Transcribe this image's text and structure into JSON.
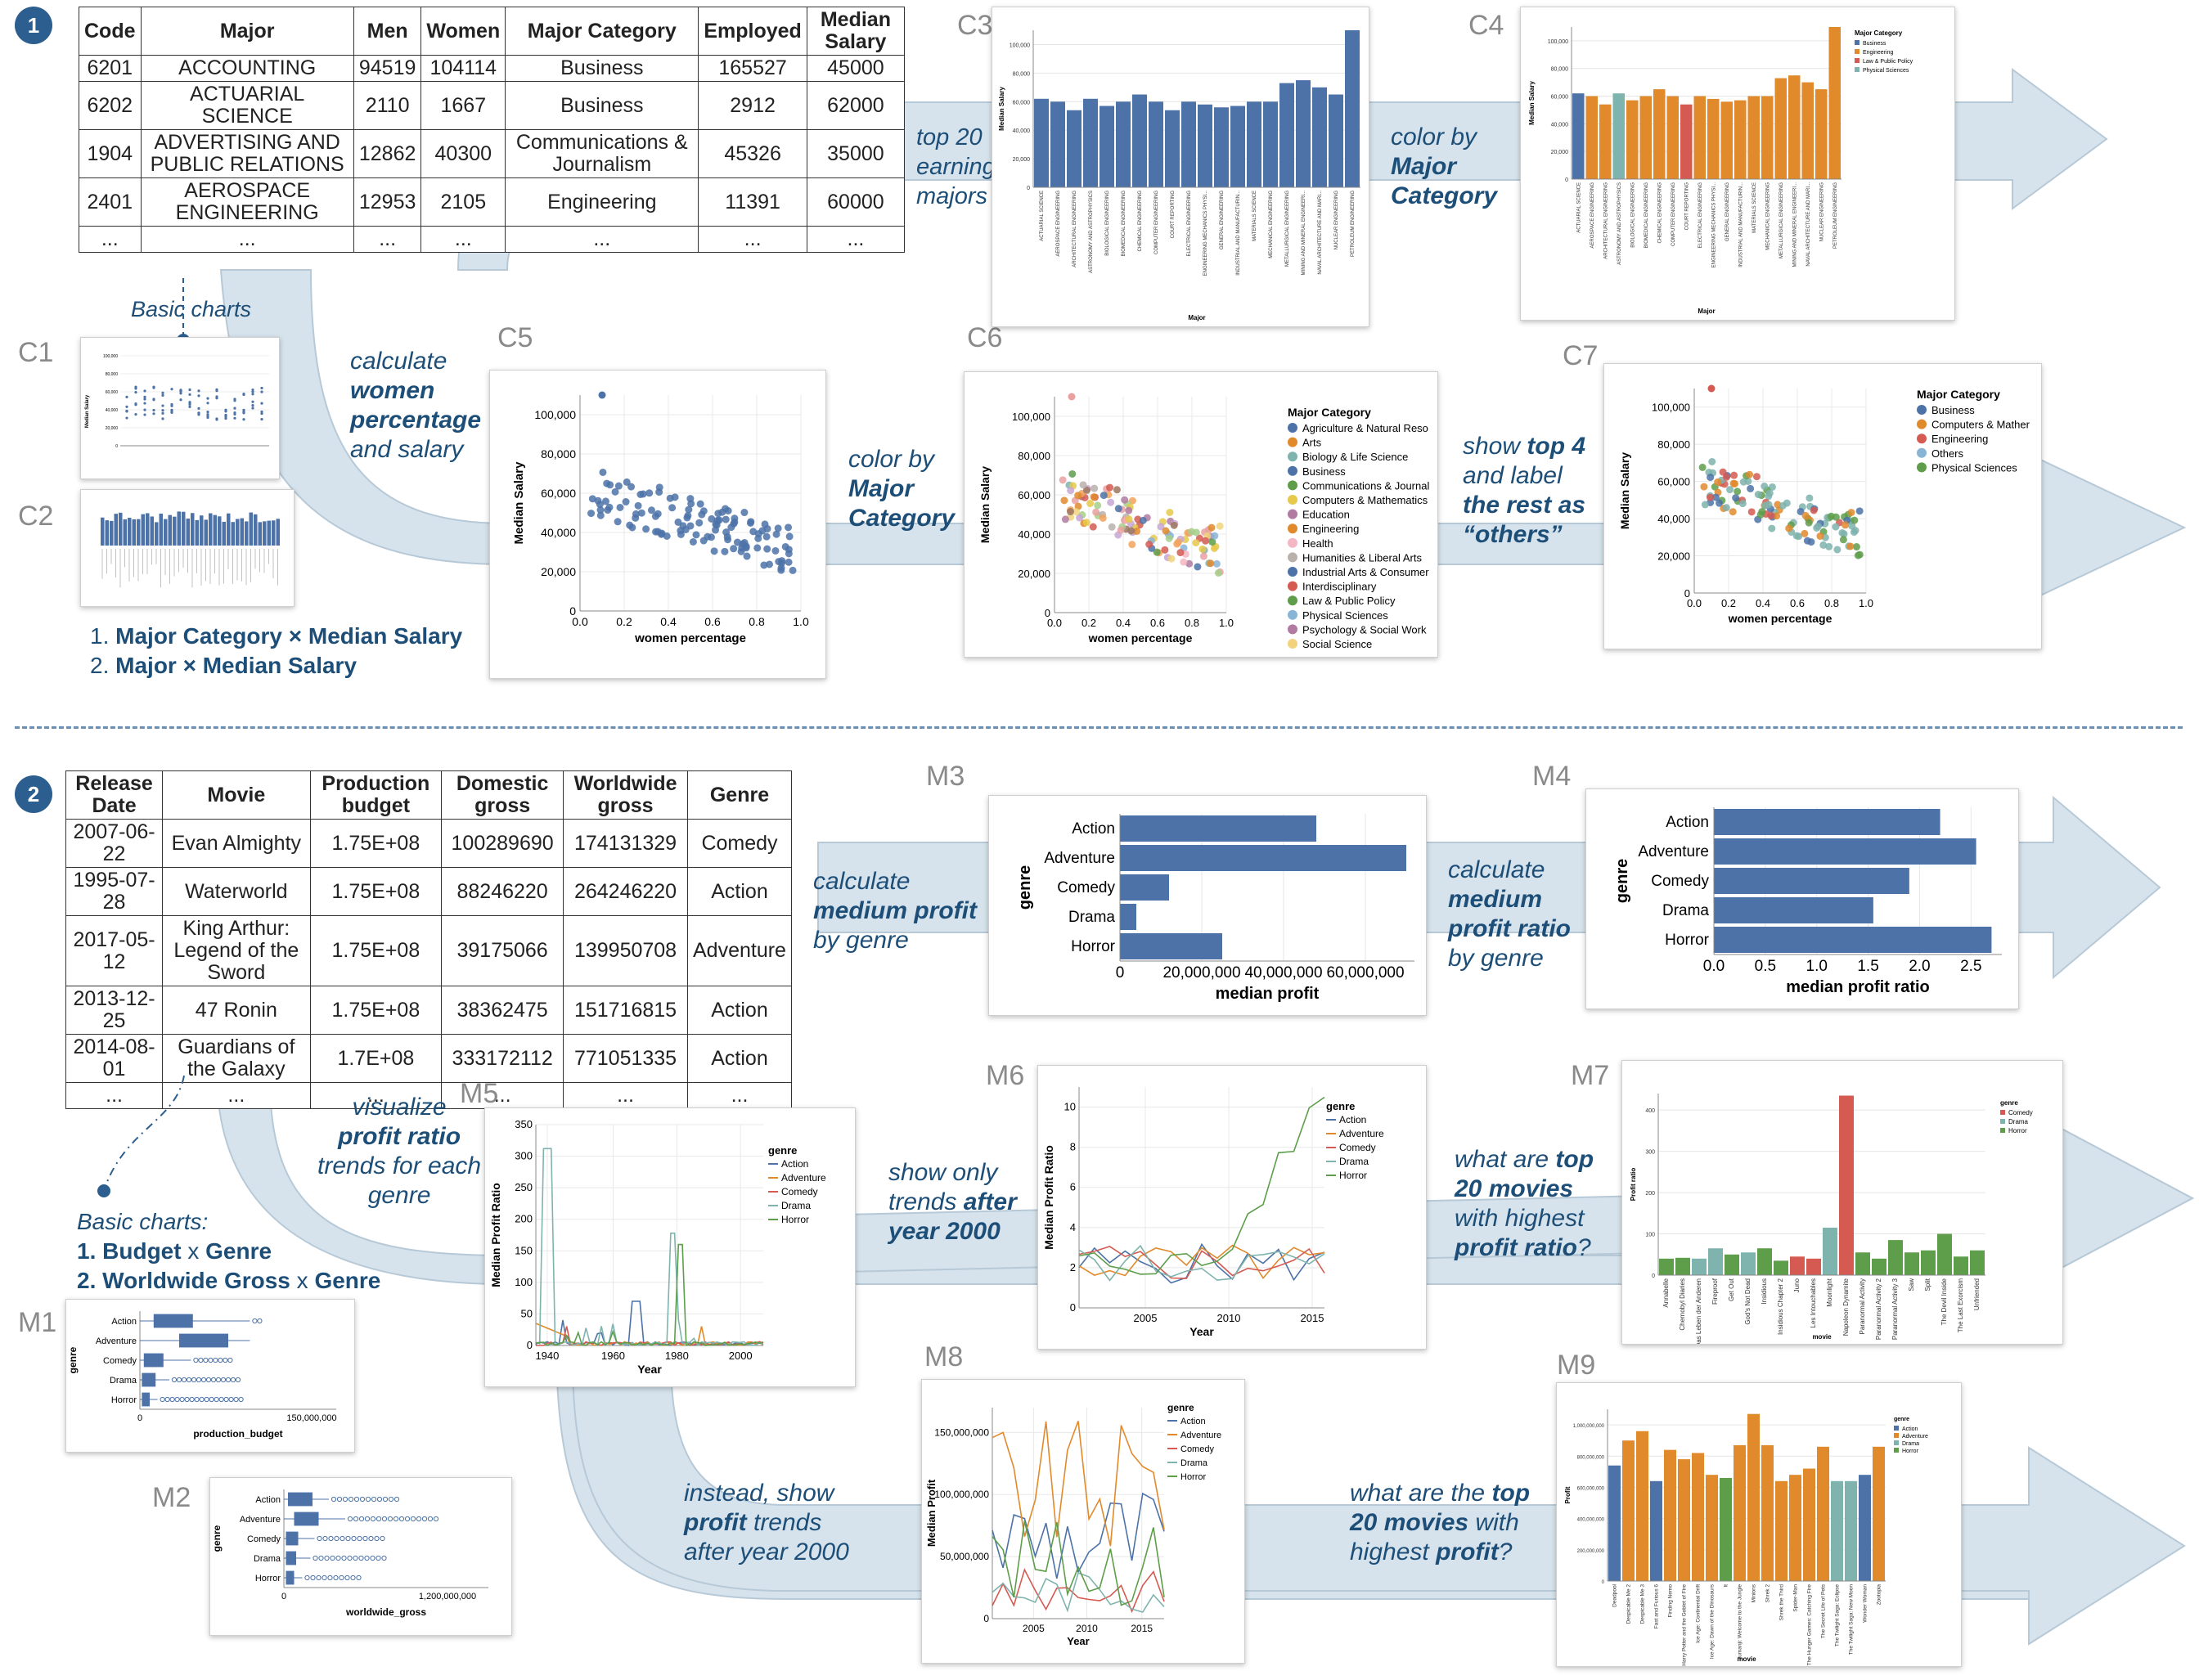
{
  "colors": {
    "flow": "#d6e3ec",
    "flow_edge": "#b7c9d7",
    "bar": "#4c72a8",
    "accent": "#1d4e78",
    "orange": "#e08a2c",
    "teal": "#7fb3ad",
    "red": "#d45a52",
    "green": "#5e9e4a"
  },
  "badges": {
    "one": "1",
    "two": "2"
  },
  "salary_table": {
    "headers": [
      "Code",
      "Major",
      "Men",
      "Women",
      "Major Category",
      "Employed",
      "Median Salary"
    ],
    "rows": [
      [
        "6201",
        "ACCOUNTING",
        "94519",
        "104114",
        "Business",
        "165527",
        "45000"
      ],
      [
        "6202",
        "ACTUARIAL SCIENCE",
        "2110",
        "1667",
        "Business",
        "2912",
        "62000"
      ],
      [
        "1904",
        "ADVERTISING AND PUBLIC RELATIONS",
        "12862",
        "40300",
        "Communications & Journalism",
        "45326",
        "35000"
      ],
      [
        "2401",
        "AEROSPACE ENGINEERING",
        "12953",
        "2105",
        "Engineering",
        "11391",
        "60000"
      ],
      [
        "...",
        "...",
        "...",
        "...",
        "...",
        "...",
        "..."
      ]
    ]
  },
  "movie_table": {
    "headers": [
      "Release Date",
      "Movie",
      "Production budget",
      "Domestic gross",
      "Worldwide gross",
      "Genre"
    ],
    "rows": [
      [
        "2007-06-22",
        "Evan Almighty",
        "1.75E+08",
        "100289690",
        "174131329",
        "Comedy"
      ],
      [
        "1995-07-28",
        "Waterworld",
        "1.75E+08",
        "88246220",
        "264246220",
        "Action"
      ],
      [
        "2017-05-12",
        "King Arthur: Legend of the Sword",
        "1.75E+08",
        "39175066",
        "139950708",
        "Adventure"
      ],
      [
        "2013-12-25",
        "47 Ronin",
        "1.75E+08",
        "38362475",
        "151716815",
        "Action"
      ],
      [
        "2014-08-01",
        "Guardians of the Galaxy",
        "1.7E+08",
        "333172112",
        "771051335",
        "Action"
      ],
      [
        "...",
        "...",
        "...",
        "...",
        "...",
        "..."
      ]
    ]
  },
  "labels": {
    "C1": "C1",
    "C2": "C2",
    "C3": "C3",
    "C4": "C4",
    "C5": "C5",
    "C6": "C6",
    "C7": "C7",
    "M1": "M1",
    "M2": "M2",
    "M3": "M3",
    "M4": "M4",
    "M5": "M5",
    "M6": "M6",
    "M7": "M7",
    "M8": "M8",
    "M9": "M9"
  },
  "steps": {
    "s1a": "top 20",
    "s1b": "earning",
    "s1c": "majors",
    "s2a": "color by",
    "s2b": "Major",
    "s2c": "Category",
    "s3a": "calculate",
    "s3b": "women",
    "s3c": "percentage",
    "s3d": "and salary",
    "s4a": "color by",
    "s4b": "Major",
    "s4c": "Category",
    "s5a": "show",
    "s5b": "top 4",
    "s5c": "and label",
    "s5d": "the rest as",
    "s5e": "“others”",
    "m1a": "calculate",
    "m1b": "medium profit",
    "m1c": "by genre",
    "m2a": "calculate",
    "m2b": "medium",
    "m2c": "profit ratio",
    "m2d": "by genre",
    "m3a": "visualize",
    "m3b": "profit ratio",
    "m3c": "trends for each",
    "m3d": "genre",
    "m4a": "show only",
    "m4b": "trends",
    "m4c": "after",
    "m4d": "year 2000",
    "m5a": "what are",
    "m5b": "top",
    "m5c": "20 movies",
    "m5d": "with highest",
    "m5e": "profit ratio",
    "m5f": "?",
    "m6a": "instead, show",
    "m6b": "profit",
    "m6c": "trends",
    "m6d": "after year 2000",
    "m7a": "what are the",
    "m7b": "top",
    "m7c": "20 movies",
    "m7d": "with",
    "m7e": "highest",
    "m7f": "profit",
    "m7g": "?"
  },
  "notes": {
    "basic1": "Basic charts",
    "basic1_items": [
      "1. ",
      "Major Category × Median Salary",
      "2. ",
      "Major × Median Salary"
    ],
    "basic2": "Basic charts:",
    "basic2_items": [
      "1. ",
      "Budget",
      " x ",
      "Genre",
      "2. ",
      "Worldwide Gross",
      " x ",
      "Genre"
    ]
  },
  "chart_data": [
    {
      "id": "C3",
      "type": "bar",
      "ylabel": "Median Salary",
      "xlabel": "Major",
      "ylim": [
        0,
        110000
      ],
      "yticks": [
        "0",
        "20,000",
        "40,000",
        "60,000",
        "80,000",
        "100,000"
      ],
      "categories": [
        "ACTUARIAL SCIENCE",
        "AEROSPACE ENGINEERING",
        "ARCHITECTURAL ENGINEERING",
        "ASTRONOMY AND ASTROPHYSICS",
        "BIOLOGICAL ENGINEERING",
        "BIOMEDICAL ENGINEERING",
        "CHEMICAL ENGINEERING",
        "COMPUTER ENGINEERING",
        "COURT REPORTING",
        "ELECTRICAL ENGINEERING",
        "ENGINEERING MECHANICS PHYSI...",
        "GENERAL ENGINEERING",
        "INDUSTRIAL AND MANUFACTURIN...",
        "MATERIALS SCIENCE",
        "MECHANICAL ENGINEERING",
        "METALLURGICAL ENGINEERING",
        "MINING AND MINERAL ENGINEERI...",
        "NAVAL ARCHITECTURE AND MARI...",
        "NUCLEAR ENGINEERING",
        "PETROLEUM ENGINEERING"
      ],
      "values": [
        62000,
        60000,
        54000,
        62000,
        57000,
        60000,
        65000,
        60000,
        54000,
        60000,
        58000,
        56000,
        57000,
        60000,
        60000,
        73000,
        75000,
        70000,
        65000,
        110000
      ]
    },
    {
      "id": "C4",
      "type": "bar",
      "ylabel": "Median Salary",
      "xlabel": "Major",
      "ylim": [
        0,
        110000
      ],
      "legend_title": "Major Category",
      "legend": [
        "Business",
        "Engineering",
        "Law & Public Policy",
        "Physical Sciences"
      ],
      "yticks": [
        "0",
        "20,000",
        "40,000",
        "60,000",
        "80,000",
        "100,000"
      ],
      "categories": [
        "ACTUARIAL SCIENCE",
        "AEROSPACE ENGINEERING",
        "ARCHITECTURAL ENGINEERING",
        "ASTRONOMY AND ASTROPHYSICS",
        "BIOLOGICAL ENGINEERING",
        "BIOMEDICAL ENGINEERING",
        "CHEMICAL ENGINEERING",
        "COMPUTER ENGINEERING",
        "COURT REPORTING",
        "ELECTRICAL ENGINEERING",
        "ENGINEERING MECHANICS PHYSI...",
        "GENERAL ENGINEERING",
        "INDUSTRIAL AND MANUFACTURIN...",
        "MATERIALS SCIENCE",
        "MECHANICAL ENGINEERING",
        "METALLURGICAL ENGINEERING",
        "MINING AND MINERAL ENGINEERI...",
        "NAVAL ARCHITECTURE AND MARI...",
        "NUCLEAR ENGINEERING",
        "PETROLEUM ENGINEERING"
      ],
      "values": [
        62000,
        60000,
        54000,
        62000,
        57000,
        60000,
        65000,
        60000,
        54000,
        60000,
        58000,
        56000,
        57000,
        60000,
        60000,
        73000,
        75000,
        70000,
        65000,
        110000
      ],
      "groups": [
        "Business",
        "Engineering",
        "Engineering",
        "Physical Sciences",
        "Engineering",
        "Engineering",
        "Engineering",
        "Engineering",
        "Law & Public Policy",
        "Engineering",
        "Engineering",
        "Engineering",
        "Engineering",
        "Engineering",
        "Engineering",
        "Engineering",
        "Engineering",
        "Engineering",
        "Engineering",
        "Engineering"
      ]
    },
    {
      "id": "C5",
      "type": "scatter",
      "xlabel": "women percentage",
      "ylabel": "Median Salary",
      "xlim": [
        0,
        1
      ],
      "ylim": [
        0,
        110000
      ],
      "xticks": [
        "0.0",
        "0.2",
        "0.4",
        "0.6",
        "0.8",
        "1.0"
      ],
      "yticks": [
        "0",
        "20,000",
        "40,000",
        "60,000",
        "80,000",
        "100,000"
      ]
    },
    {
      "id": "C6",
      "type": "scatter",
      "xlabel": "women percentage",
      "ylabel": "Median Salary",
      "xlim": [
        0,
        1
      ],
      "ylim": [
        0,
        110000
      ],
      "xticks": [
        "0.0",
        "0.2",
        "0.4",
        "0.6",
        "0.8",
        "1.0"
      ],
      "yticks": [
        "0",
        "20,000",
        "40,000",
        "60,000",
        "80,000",
        "100,000"
      ],
      "legend_title": "Major Category",
      "legend": [
        "Agriculture & Natural Reso",
        "Arts",
        "Biology & Life Science",
        "Business",
        "Communications & Journal",
        "Computers & Mathematics",
        "Education",
        "Engineering",
        "Health",
        "Humanities & Liberal Arts",
        "Industrial Arts & Consumer",
        "Interdisciplinary",
        "Law & Public Policy",
        "Physical Sciences",
        "Psychology & Social Work",
        "Social Science"
      ]
    },
    {
      "id": "C7",
      "type": "scatter",
      "xlabel": "women percentage",
      "ylabel": "Median Salary",
      "xlim": [
        0,
        1
      ],
      "ylim": [
        0,
        110000
      ],
      "xticks": [
        "0.0",
        "0.2",
        "0.4",
        "0.6",
        "0.8",
        "1.0"
      ],
      "yticks": [
        "0",
        "20,000",
        "40,000",
        "60,000",
        "80,000",
        "100,000"
      ],
      "legend_title": "Major Category",
      "legend": [
        "Business",
        "Computers & Mather",
        "Engineering",
        "Others",
        "Physical Sciences"
      ]
    },
    {
      "id": "M3",
      "type": "bar",
      "orientation": "horizontal",
      "ylabel": "genre",
      "xlabel": "median profit",
      "categories": [
        "Action",
        "Adventure",
        "Comedy",
        "Drama",
        "Horror"
      ],
      "values": [
        48000000,
        70000000,
        12000000,
        4000000,
        25000000
      ],
      "xticks": [
        "0",
        "20,000,000",
        "40,000,000",
        "60,000,000"
      ],
      "xlim": [
        0,
        72000000
      ]
    },
    {
      "id": "M4",
      "type": "bar",
      "orientation": "horizontal",
      "ylabel": "genre",
      "xlabel": "median profit ratio",
      "categories": [
        "Action",
        "Adventure",
        "Comedy",
        "Drama",
        "Horror"
      ],
      "values": [
        2.2,
        2.55,
        1.9,
        1.55,
        2.7
      ],
      "xticks": [
        "0.0",
        "0.5",
        "1.0",
        "1.5",
        "2.0",
        "2.5"
      ],
      "xlim": [
        0,
        2.8
      ]
    },
    {
      "id": "M5",
      "type": "line",
      "xlabel": "Year",
      "ylabel": "Median Profit Ratio",
      "ylim": [
        0,
        350
      ],
      "xticks": [
        "1940",
        "1960",
        "1980",
        "2000"
      ],
      "yticks": [
        "0",
        "50",
        "100",
        "150",
        "200",
        "250",
        "300",
        "350"
      ],
      "legend_title": "genre",
      "legend": [
        "Action",
        "Adventure",
        "Comedy",
        "Drama",
        "Horror"
      ]
    },
    {
      "id": "M6",
      "type": "line",
      "xlabel": "Year",
      "ylabel": "Median Profit Ratio",
      "ylim": [
        0,
        11
      ],
      "xticks": [
        "2005",
        "2010",
        "2015"
      ],
      "yticks": [
        "0",
        "2",
        "4",
        "6",
        "8",
        "10"
      ],
      "legend_title": "genre",
      "legend": [
        "Action",
        "Adventure",
        "Comedy",
        "Drama",
        "Horror"
      ]
    },
    {
      "id": "M7",
      "type": "bar",
      "xlabel": "movie",
      "ylabel": "Profit ratio",
      "ylim": [
        0,
        440
      ],
      "yticks": [
        "0",
        "100",
        "200",
        "300",
        "400"
      ],
      "legend_title": "genre",
      "legend": [
        "Comedy",
        "Drama",
        "Horror"
      ],
      "categories": [
        "Annabelle",
        "Chernobyl Diaries",
        "Das Leben der Anderen",
        "Fireproof",
        "Get Out",
        "God's Not Dead",
        "Insidious",
        "Insidious Chapter 2",
        "Juno",
        "Les Intouchables",
        "Moonlight",
        "Napoleon Dynamite",
        "Paranormal Activity",
        "Paranormal Activity 2",
        "Paranormal Activity 3",
        "Saw",
        "Split",
        "The Devil Inside",
        "The Last Exorcism",
        "Unfriended"
      ],
      "values": [
        40,
        42,
        40,
        65,
        50,
        55,
        65,
        35,
        45,
        40,
        115,
        435,
        55,
        40,
        85,
        55,
        60,
        100,
        45,
        60
      ],
      "groups": [
        "Horror",
        "Horror",
        "Drama",
        "Drama",
        "Horror",
        "Drama",
        "Horror",
        "Horror",
        "Comedy",
        "Comedy",
        "Drama",
        "Comedy",
        "Horror",
        "Horror",
        "Horror",
        "Horror",
        "Horror",
        "Horror",
        "Horror",
        "Horror"
      ]
    },
    {
      "id": "M8",
      "type": "line",
      "xlabel": "Year",
      "ylabel": "Median Profit",
      "ylim": [
        0,
        170000000
      ],
      "xticks": [
        "2005",
        "2010",
        "2015"
      ],
      "yticks": [
        "0",
        "50,000,000",
        "100,000,000",
        "150,000,000"
      ],
      "legend_title": "genre",
      "legend": [
        "Action",
        "Adventure",
        "Comedy",
        "Drama",
        "Horror"
      ]
    },
    {
      "id": "M9",
      "type": "bar",
      "xlabel": "movie",
      "ylabel": "Profit",
      "ylim": [
        0,
        1100000000
      ],
      "yticks": [
        "0",
        "200,000,000",
        "400,000,000",
        "600,000,000",
        "800,000,000",
        "1,000,000,000"
      ],
      "legend_title": "genre",
      "legend": [
        "Action",
        "Adventure",
        "Drama",
        "Horror"
      ],
      "categories": [
        "Deadpool",
        "Despicable Me 2",
        "Despicable Me 3",
        "Fast and Furious 6",
        "Finding Nemo",
        "Harry Potter and the Goblet of Fire",
        "Ice Age: Continental Drift",
        "Ice Age: Dawn of the Dinosaurs",
        "It",
        "Jumanji: Welcome to the Jungle",
        "Minions",
        "Shrek 2",
        "Shrek the Third",
        "Spider-Man",
        "The Hunger Games: Catching Fire",
        "The Secret Life of Pets",
        "The Twilight Saga: Eclipse",
        "The Twilight Saga: New Moon",
        "Wonder Woman",
        "Zootopia"
      ],
      "values": [
        740000000,
        900000000,
        960000000,
        640000000,
        840000000,
        780000000,
        820000000,
        680000000,
        660000000,
        870000000,
        1070000000,
        870000000,
        640000000,
        680000000,
        720000000,
        860000000,
        640000000,
        640000000,
        680000000,
        860000000
      ],
      "groups": [
        "Action",
        "Adventure",
        "Adventure",
        "Action",
        "Adventure",
        "Adventure",
        "Adventure",
        "Adventure",
        "Horror",
        "Adventure",
        "Adventure",
        "Adventure",
        "Adventure",
        "Adventure",
        "Adventure",
        "Adventure",
        "Drama",
        "Drama",
        "Action",
        "Adventure"
      ]
    },
    {
      "id": "M1",
      "type": "boxplot",
      "xlabel": "production_budget",
      "ylabel": "genre",
      "categories": [
        "Action",
        "Adventure",
        "Comedy",
        "Drama",
        "Horror"
      ],
      "xticks": [
        "0",
        "150,000,000"
      ]
    },
    {
      "id": "M2",
      "type": "boxplot",
      "xlabel": "worldwide_gross",
      "ylabel": "genre",
      "categories": [
        "Action",
        "Adventure",
        "Comedy",
        "Drama",
        "Horror"
      ],
      "xticks": [
        "0",
        "1,200,000,000"
      ]
    },
    {
      "id": "C1",
      "type": "scatter",
      "ylabel": "Median Salary",
      "yticks": [
        "0",
        "20,000",
        "40,000",
        "60,000",
        "80,000",
        "100,000"
      ]
    },
    {
      "id": "C2",
      "type": "bar",
      "ylabel": "Median Salary"
    }
  ]
}
